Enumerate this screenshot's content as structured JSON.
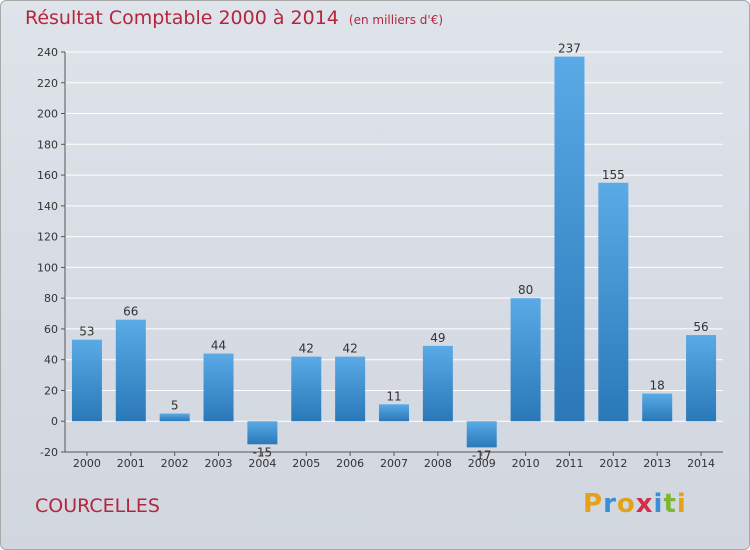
{
  "header": {
    "title": "Résultat Comptable 2000 à 2014",
    "subtitle": "(en milliers d'€)"
  },
  "footer": {
    "commune": "COURCELLES",
    "brand_letters": [
      "P",
      "r",
      "o",
      "x",
      "i",
      "t",
      "i"
    ],
    "brand_colors": [
      "#e3a21a",
      "#3a8fd6",
      "#e3a21a",
      "#d42d4c",
      "#3a8fd6",
      "#7cb82f",
      "#e3a21a"
    ]
  },
  "colors": {
    "bar_light": "#5aaae6",
    "bar_dark": "#2a78b8",
    "grid": "#ffffff",
    "axis": "#555555",
    "text": "#333333"
  },
  "chart_data": {
    "type": "bar",
    "categories": [
      "2000",
      "2001",
      "2002",
      "2003",
      "2004",
      "2005",
      "2006",
      "2007",
      "2008",
      "2009",
      "2010",
      "2011",
      "2012",
      "2013",
      "2014"
    ],
    "values": [
      53,
      66,
      5,
      44,
      -15,
      42,
      42,
      11,
      49,
      -17,
      80,
      237,
      155,
      18,
      56
    ],
    "title": "Résultat Comptable 2000 à 2014",
    "xlabel": "",
    "ylabel": "",
    "ylim": [
      -20,
      240
    ],
    "yticks": [
      -20,
      0,
      20,
      40,
      60,
      80,
      100,
      120,
      140,
      160,
      180,
      200,
      220,
      240
    ],
    "grid": true,
    "legend": "none"
  }
}
